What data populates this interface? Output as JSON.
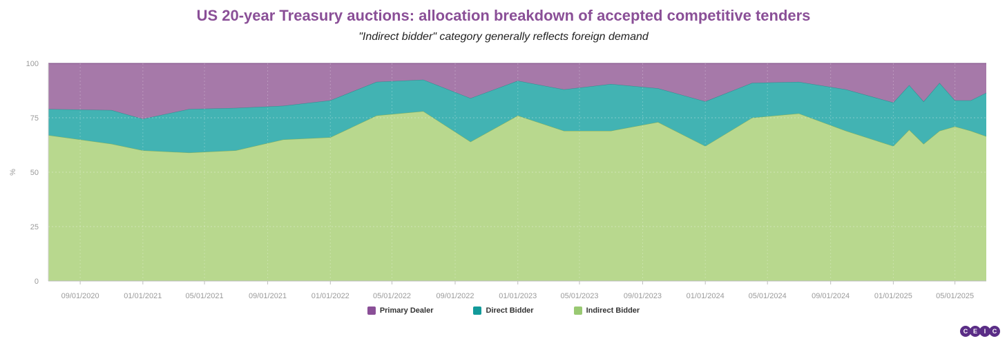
{
  "chart_data": {
    "type": "area",
    "stacked": true,
    "title": "US 20-year Treasury auctions: allocation breakdown of accepted competitive tenders",
    "subtitle": "\"Indirect bidder\" category generally reflects foreign demand",
    "ylabel": "%",
    "ylim": [
      0,
      100
    ],
    "yticks": [
      0,
      25,
      50,
      75,
      100
    ],
    "xlim": [
      "2020-07-01",
      "2025-07-01"
    ],
    "xticks": [
      "09/01/2020",
      "01/01/2021",
      "05/01/2021",
      "09/01/2021",
      "01/01/2022",
      "05/01/2022",
      "09/01/2022",
      "01/01/2023",
      "05/01/2023",
      "09/01/2023",
      "01/01/2024",
      "05/01/2024",
      "09/01/2024",
      "01/01/2025",
      "05/01/2025"
    ],
    "xtick_dates": [
      "2020-09-01",
      "2021-01-01",
      "2021-05-01",
      "2021-09-01",
      "2022-01-01",
      "2022-05-01",
      "2022-09-01",
      "2023-01-01",
      "2023-05-01",
      "2023-09-01",
      "2024-01-01",
      "2024-05-01",
      "2024-09-01",
      "2025-01-01",
      "2025-05-01"
    ],
    "x": [
      "2020-07-01",
      "2020-11-01",
      "2021-01-01",
      "2021-04-01",
      "2021-07-01",
      "2021-10-01",
      "2022-01-01",
      "2022-04-01",
      "2022-07-01",
      "2022-10-01",
      "2023-01-01",
      "2023-04-01",
      "2023-07-01",
      "2023-10-01",
      "2024-01-01",
      "2024-04-01",
      "2024-07-01",
      "2024-10-01",
      "2025-01-01",
      "2025-02-01",
      "2025-03-01",
      "2025-04-01",
      "2025-05-01",
      "2025-06-01",
      "2025-07-01"
    ],
    "series": [
      {
        "name": "Indirect Bidder",
        "color": "#b8d88e",
        "line": "#7fae5c",
        "values": [
          67,
          63,
          60,
          59,
          60,
          65,
          66,
          76,
          78,
          64,
          76,
          69,
          69,
          73,
          62,
          75,
          77,
          69,
          62,
          69.5,
          63,
          69,
          71,
          69,
          66.5
        ]
      },
      {
        "name": "Direct Bidder",
        "color": "#42b3b3",
        "line": "#2f8c8c",
        "values": [
          12,
          15.5,
          14.5,
          20,
          19.5,
          15.5,
          17,
          15.5,
          14.5,
          20,
          16,
          19,
          21.5,
          15.5,
          20.5,
          16,
          14.5,
          19,
          20,
          20.5,
          19.5,
          22,
          12,
          14,
          20
        ]
      },
      {
        "name": "Primary Dealer",
        "color": "#a679a9",
        "line": "#7c4c85",
        "values": [
          21,
          21.5,
          25.5,
          21,
          20.5,
          19.5,
          17,
          8.5,
          7.5,
          16,
          8,
          12,
          9.5,
          11.5,
          17.5,
          9,
          8.5,
          12,
          18,
          10,
          17.5,
          9,
          17,
          17,
          13.5
        ]
      }
    ],
    "legend": [
      "Primary Dealer",
      "Direct Bidder",
      "Indirect Bidder"
    ],
    "legend_colors": [
      "#8a4f97",
      "#129a9a",
      "#99c972"
    ]
  },
  "logo": {
    "letters": [
      "C",
      "E",
      "I",
      "C"
    ],
    "color": "#5a2d86"
  }
}
